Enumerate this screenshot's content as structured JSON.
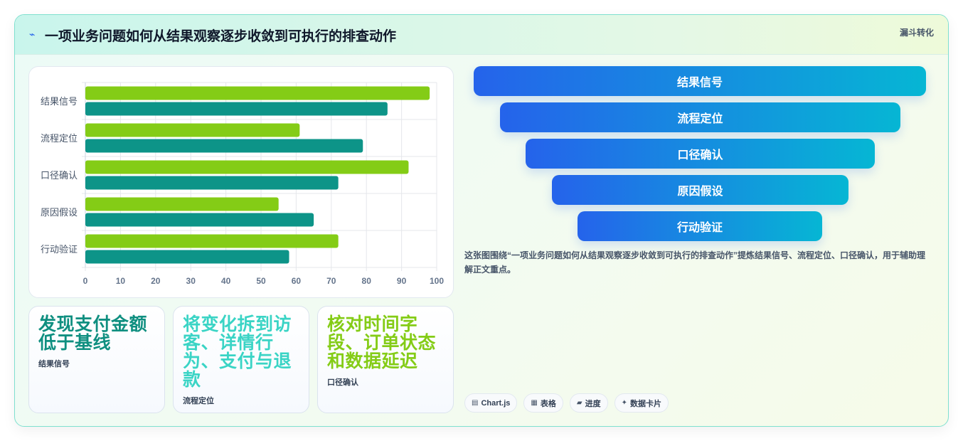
{
  "header": {
    "title": "一项业务问题如何从结果观察逐步收敛到可执行的排查动作",
    "tag": "漏斗转化"
  },
  "chart_data": {
    "type": "bar",
    "orientation": "horizontal",
    "categories": [
      "结果信号",
      "流程定位",
      "口径确认",
      "原因假设",
      "行动验证"
    ],
    "series": [
      {
        "color": "#84cc16",
        "values": [
          98,
          61,
          92,
          55,
          72
        ]
      },
      {
        "color": "#0d9488",
        "values": [
          86,
          79,
          72,
          65,
          58
        ]
      }
    ],
    "xlim": [
      0,
      100
    ],
    "xticks": [
      "0",
      "10",
      "20",
      "30",
      "40",
      "50",
      "60",
      "70",
      "80",
      "90",
      "100"
    ],
    "grid": true
  },
  "kpis": [
    {
      "value": "发现支付金额低于基线",
      "label": "结果信号"
    },
    {
      "value": "将变化拆到访客、详情行为、支付与退款",
      "label": "流程定位"
    },
    {
      "value": "核对时间字段、订单状态和数据延迟",
      "label": "口径确认"
    }
  ],
  "funnel": [
    "结果信号",
    "流程定位",
    "口径确认",
    "原因假设",
    "行动验证"
  ],
  "description": "这张图围绕“一项业务问题如何从结果观察逐步收敛到可执行的排查动作”提炼结果信号、流程定位、口径确认，用于辅助理解正文重点。",
  "chips": [
    {
      "icon": "chart-icon",
      "glyph": "▤",
      "label": "Chart.js"
    },
    {
      "icon": "table-icon",
      "glyph": "▦",
      "label": "表格"
    },
    {
      "icon": "progress-icon",
      "glyph": "▰",
      "label": "进度"
    },
    {
      "icon": "sparkle-icon",
      "glyph": "✦",
      "label": "数据卡片"
    }
  ]
}
